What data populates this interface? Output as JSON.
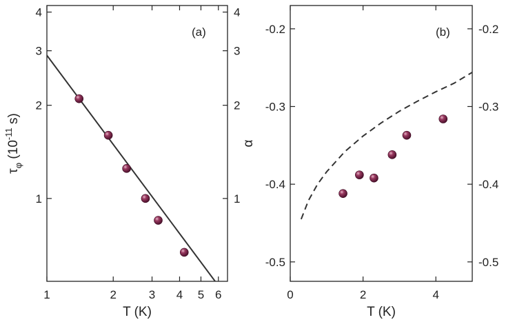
{
  "chart_data": [
    {
      "type": "scatter",
      "panel_label": "(a)",
      "xlabel": "T (K)",
      "ylabel_main": "τ",
      "ylabel_subscript": "φ",
      "ylabel_rest": " (10",
      "ylabel_exponent": "-11",
      "ylabel_unit": " s)",
      "xscale": "log",
      "yscale": "log",
      "xlim": [
        1,
        6.6
      ],
      "ylim": [
        0.54,
        4.2
      ],
      "xticks": [
        1,
        2,
        3,
        4,
        5,
        6
      ],
      "xtick_labels": [
        "1",
        "2",
        "3",
        "4",
        "5",
        "6"
      ],
      "yticks": [
        1,
        2,
        3,
        4
      ],
      "ytick_labels": [
        "1",
        "2",
        "3",
        "4"
      ],
      "grid": false,
      "colors": {
        "marker": "#7a1f45",
        "line": "#333333"
      },
      "series": [
        {
          "kind": "markers",
          "x": [
            1.4,
            1.9,
            2.3,
            2.8,
            3.2,
            4.2
          ],
          "y": [
            2.1,
            1.6,
            1.25,
            1.0,
            0.85,
            0.67
          ]
        },
        {
          "kind": "line",
          "style": "solid",
          "x": [
            1.0,
            5.8
          ],
          "y": [
            2.9,
            0.54
          ]
        }
      ]
    },
    {
      "type": "scatter",
      "panel_label": "(b)",
      "xlabel": "T (K)",
      "ylabel": "α",
      "xlim": [
        0,
        5
      ],
      "ylim": [
        -0.525,
        -0.17
      ],
      "xticks": [
        0,
        2,
        4
      ],
      "xtick_labels": [
        "0",
        "2",
        "4"
      ],
      "yticks": [
        -0.2,
        -0.3,
        -0.4,
        -0.5
      ],
      "ytick_labels": [
        "-0.2",
        "-0.3",
        "-0.4",
        "-0.5"
      ],
      "grid": false,
      "colors": {
        "marker": "#7a1f45",
        "line": "#333333"
      },
      "series": [
        {
          "kind": "markers",
          "x": [
            1.45,
            1.9,
            2.3,
            2.8,
            3.2,
            4.2
          ],
          "y": [
            -0.412,
            -0.388,
            -0.392,
            -0.362,
            -0.337,
            -0.316
          ]
        },
        {
          "kind": "line",
          "style": "dashed",
          "x": [
            0.3,
            0.5,
            0.75,
            1.0,
            1.5,
            2.0,
            2.5,
            3.0,
            3.5,
            4.0,
            4.5,
            5.0
          ],
          "y": [
            -0.445,
            -0.421,
            -0.4,
            -0.384,
            -0.358,
            -0.338,
            -0.321,
            -0.306,
            -0.293,
            -0.281,
            -0.27,
            -0.256
          ]
        }
      ]
    }
  ]
}
